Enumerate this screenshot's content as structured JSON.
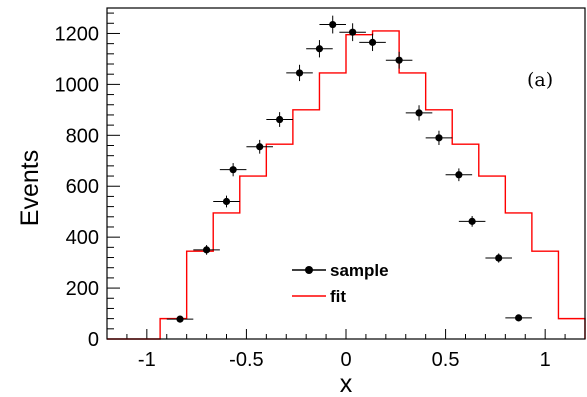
{
  "chart_data": {
    "type": "histogram-with-points",
    "xlabel": "x",
    "ylabel": "Events",
    "xlim": [
      -1.2,
      1.2
    ],
    "ylim": [
      0,
      1300
    ],
    "x_ticks": [
      -1,
      -0.5,
      0,
      0.5,
      1
    ],
    "x_tick_labels": [
      "-1",
      "-0.5",
      "0",
      "0.5",
      "1"
    ],
    "y_ticks": [
      0,
      200,
      400,
      600,
      800,
      1000,
      1200
    ],
    "y_tick_labels": [
      "0",
      "200",
      "400",
      "600",
      "800",
      "1000",
      "1200"
    ],
    "annotation": "(a)",
    "legend": {
      "placement": "center-bottom",
      "entries": [
        {
          "label": "sample",
          "marker": "point-with-errorbar",
          "color": "#000000"
        },
        {
          "label": "fit",
          "marker": "line",
          "color": "#ff0000"
        }
      ]
    },
    "bin_edges": [
      -1.2,
      -1.0667,
      -0.9333,
      -0.8,
      -0.6667,
      -0.5333,
      -0.4,
      -0.2667,
      -0.1333,
      0,
      0.1333,
      0.2667,
      0.4,
      0.5333,
      0.6667,
      0.8,
      0.9333,
      1.0667,
      1.2
    ],
    "series": [
      {
        "name": "sample",
        "kind": "points",
        "color": "#000000",
        "x": [
          -0.8333,
          -0.7,
          -0.6,
          -0.5667,
          -0.4333,
          -0.3333,
          -0.2333,
          -0.1333,
          -0.0667,
          0.0333,
          0.1333,
          0.2667,
          0.3667,
          0.4667,
          0.5667,
          0.6333,
          0.7667,
          0.8667
        ],
        "y": [
          78,
          350,
          540,
          665,
          755,
          862,
          1045,
          1140,
          1235,
          1205,
          1165,
          1095,
          888,
          790,
          645,
          462,
          318,
          83
        ],
        "yerr": [
          9,
          19,
          23,
          26,
          27,
          29,
          32,
          34,
          35,
          35,
          34,
          33,
          30,
          28,
          25,
          21,
          18,
          9
        ]
      },
      {
        "name": "fit",
        "kind": "step",
        "color": "#ff0000",
        "values": [
          0,
          0,
          80,
          345,
          495,
          640,
          765,
          900,
          1045,
          1195,
          1210,
          1045,
          900,
          765,
          640,
          495,
          345,
          80,
          0
        ]
      }
    ]
  }
}
